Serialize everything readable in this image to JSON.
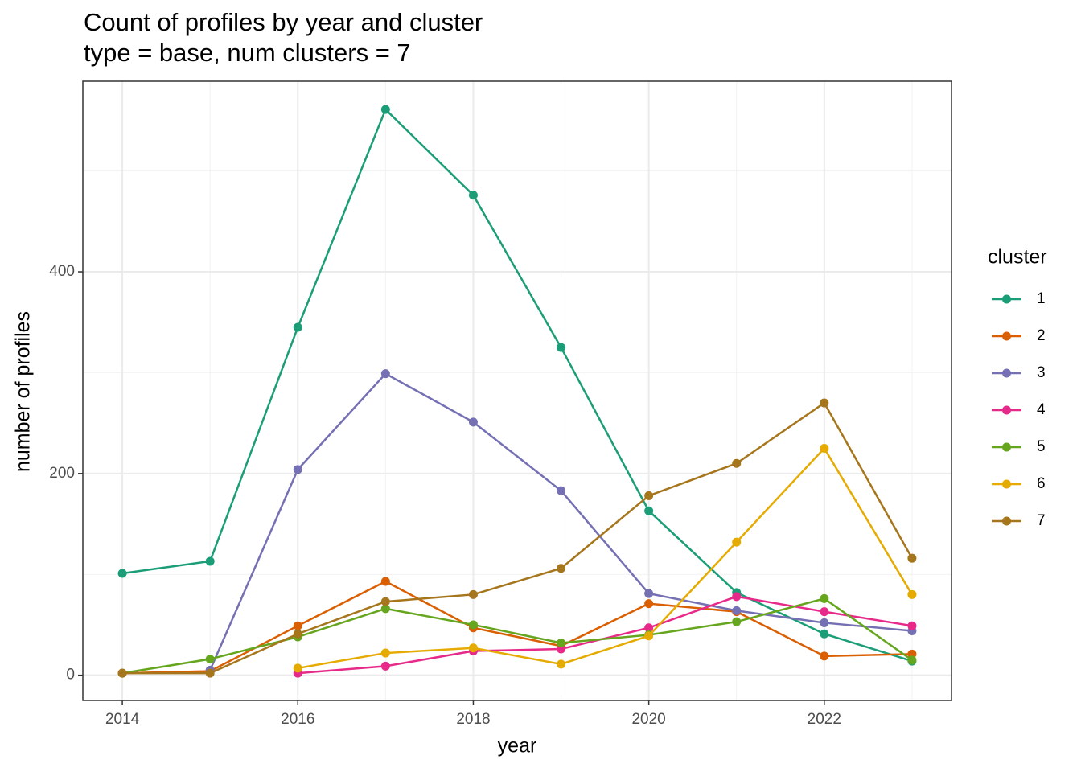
{
  "chart_data": {
    "type": "line",
    "title": "Count of profiles by year and cluster",
    "subtitle": "type = base, num clusters = 7",
    "x_label": "year",
    "y_label": "number of profiles",
    "legend_title": "cluster",
    "legend_position": "right",
    "x": [
      2014,
      2015,
      2016,
      2017,
      2018,
      2019,
      2020,
      2021,
      2022,
      2023
    ],
    "series": [
      {
        "name": "1",
        "color": "#1b9e77",
        "values": [
          101,
          113,
          345,
          561,
          476,
          325,
          163,
          82,
          41,
          14
        ]
      },
      {
        "name": "2",
        "color": "#d95f02",
        "values": [
          2,
          4,
          49,
          93,
          47,
          29,
          71,
          63,
          19,
          21
        ]
      },
      {
        "name": "3",
        "color": "#7570b3",
        "values": [
          null,
          5,
          204,
          299,
          251,
          183,
          81,
          64,
          52,
          44
        ]
      },
      {
        "name": "4",
        "color": "#e7298a",
        "values": [
          null,
          null,
          2,
          9,
          24,
          26,
          47,
          78,
          63,
          49
        ]
      },
      {
        "name": "5",
        "color": "#66a61e",
        "values": [
          2,
          16,
          38,
          66,
          50,
          32,
          40,
          53,
          76,
          15
        ]
      },
      {
        "name": "6",
        "color": "#e6ab02",
        "values": [
          null,
          null,
          7,
          22,
          27,
          11,
          39,
          132,
          225,
          80
        ]
      },
      {
        "name": "7",
        "color": "#a6761d",
        "values": [
          2,
          2,
          41,
          73,
          80,
          106,
          178,
          210,
          270,
          116
        ]
      }
    ],
    "xlim": [
      2013.55,
      2023.45
    ],
    "xticks": [
      2014,
      2016,
      2018,
      2020,
      2022
    ],
    "xminor": [
      2015,
      2017,
      2019,
      2021,
      2023
    ],
    "ylim": [
      -25,
      589
    ],
    "yticks": [
      0,
      200,
      400
    ],
    "yminor": [
      100,
      300,
      500
    ],
    "grid": true
  }
}
